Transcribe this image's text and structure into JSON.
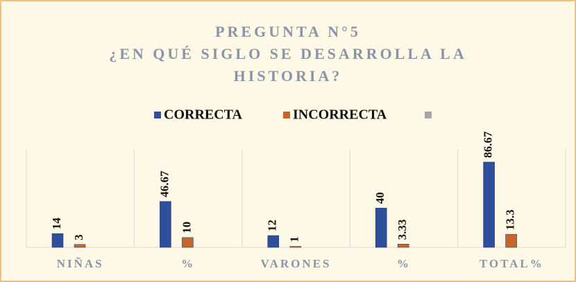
{
  "chart_data": {
    "type": "bar",
    "title": [
      "PREGUNTA N°5",
      "¿EN QUÉ SIGLO SE DESARROLLA LA",
      "HISTORIA?"
    ],
    "categories": [
      "NIÑAS",
      "%",
      "VARONES",
      "%",
      "TOTAL%"
    ],
    "series": [
      {
        "name": "CORRECTA",
        "color": "#2e4f9e",
        "values": [
          14,
          46.67,
          12,
          40,
          86.67
        ]
      },
      {
        "name": "INCORRECTA",
        "color": "#c8662a",
        "values": [
          3,
          10,
          1,
          3.33,
          13.3
        ]
      }
    ],
    "ylim": [
      0,
      100
    ]
  }
}
